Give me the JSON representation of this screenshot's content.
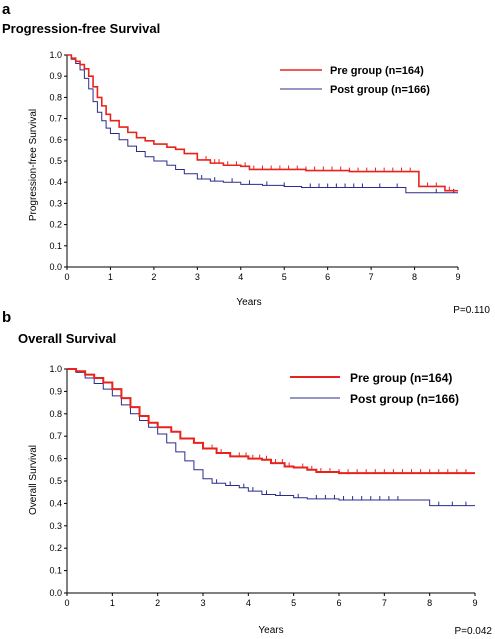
{
  "colors": {
    "pre": "#e8231c",
    "post": "#2b2b8c",
    "axis": "#000000"
  },
  "chart_data": [
    {
      "type": "line",
      "panel_label": "a",
      "title": "Progression-free  Survival",
      "xlabel": "Years",
      "ylabel": "Progression-free  Survival",
      "xlim": [
        0,
        9
      ],
      "ylim": [
        0,
        1.0
      ],
      "xticks": [
        "0",
        "1",
        "2",
        "3",
        "4",
        "5",
        "6",
        "7",
        "8",
        "9"
      ],
      "yticks": [
        "0.0",
        "0.1",
        "0.2",
        "0.3",
        "0.4",
        "0.5",
        "0.6",
        "0.7",
        "0.8",
        "0.9",
        "1.0"
      ],
      "legend_position": "top-right",
      "p_value": "P=0.110",
      "series": [
        {
          "name": "Pre group (n=164)",
          "color": "#e8231c",
          "points": [
            [
              0,
              1.0
            ],
            [
              0.1,
              0.985
            ],
            [
              0.2,
              0.97
            ],
            [
              0.3,
              0.955
            ],
            [
              0.4,
              0.935
            ],
            [
              0.5,
              0.9
            ],
            [
              0.6,
              0.85
            ],
            [
              0.7,
              0.8
            ],
            [
              0.8,
              0.76
            ],
            [
              0.9,
              0.72
            ],
            [
              1.0,
              0.69
            ],
            [
              1.2,
              0.66
            ],
            [
              1.4,
              0.635
            ],
            [
              1.6,
              0.61
            ],
            [
              1.8,
              0.595
            ],
            [
              2.0,
              0.58
            ],
            [
              2.3,
              0.565
            ],
            [
              2.5,
              0.555
            ],
            [
              2.7,
              0.535
            ],
            [
              3.0,
              0.505
            ],
            [
              3.3,
              0.49
            ],
            [
              3.6,
              0.48
            ],
            [
              4.0,
              0.475
            ],
            [
              4.2,
              0.46
            ],
            [
              5.0,
              0.46
            ],
            [
              5.5,
              0.455
            ],
            [
              6.5,
              0.45
            ],
            [
              8.1,
              0.45
            ],
            [
              8.1,
              0.38
            ],
            [
              8.7,
              0.38
            ],
            [
              8.7,
              0.36
            ],
            [
              9.0,
              0.36
            ]
          ],
          "censors": [
            3.0,
            3.2,
            3.4,
            3.5,
            3.7,
            3.9,
            4.1,
            4.3,
            4.5,
            4.7,
            4.9,
            5.1,
            5.3,
            5.5,
            5.7,
            5.9,
            6.1,
            6.3,
            6.5,
            6.7,
            6.9,
            7.1,
            7.3,
            7.5,
            7.7,
            7.9,
            8.3,
            8.5,
            8.8
          ]
        },
        {
          "name": "Post group (n=166)",
          "color": "#2b2b8c",
          "points": [
            [
              0,
              1.0
            ],
            [
              0.1,
              0.98
            ],
            [
              0.2,
              0.96
            ],
            [
              0.3,
              0.93
            ],
            [
              0.4,
              0.89
            ],
            [
              0.5,
              0.84
            ],
            [
              0.6,
              0.78
            ],
            [
              0.7,
              0.73
            ],
            [
              0.8,
              0.69
            ],
            [
              0.9,
              0.655
            ],
            [
              1.0,
              0.63
            ],
            [
              1.2,
              0.6
            ],
            [
              1.4,
              0.57
            ],
            [
              1.6,
              0.545
            ],
            [
              1.8,
              0.52
            ],
            [
              2.0,
              0.5
            ],
            [
              2.3,
              0.48
            ],
            [
              2.5,
              0.46
            ],
            [
              2.7,
              0.44
            ],
            [
              3.0,
              0.415
            ],
            [
              3.3,
              0.405
            ],
            [
              3.6,
              0.4
            ],
            [
              4.0,
              0.39
            ],
            [
              4.5,
              0.385
            ],
            [
              5.0,
              0.38
            ],
            [
              5.4,
              0.375
            ],
            [
              7.8,
              0.375
            ],
            [
              7.8,
              0.35
            ],
            [
              9.0,
              0.35
            ]
          ],
          "censors": [
            3.1,
            3.4,
            3.8,
            4.2,
            4.6,
            5.0,
            5.6,
            5.8,
            6.0,
            6.2,
            6.4,
            6.6,
            6.8,
            7.2,
            7.6,
            8.5,
            8.9
          ]
        }
      ]
    },
    {
      "type": "line",
      "panel_label": "b",
      "title": "Overall  Survival",
      "xlabel": "Years",
      "ylabel": "Overall Survival",
      "xlim": [
        0,
        9
      ],
      "ylim": [
        0,
        1.0
      ],
      "xticks": [
        "0",
        "1",
        "2",
        "3",
        "4",
        "5",
        "6",
        "7",
        "8",
        "9"
      ],
      "yticks": [
        "0.0",
        "0.1",
        "0.2",
        "0.3",
        "0.4",
        "0.5",
        "0.6",
        "0.7",
        "0.8",
        "0.9",
        "1.0"
      ],
      "legend_position": "top-right",
      "p_value": "P=0.042",
      "series": [
        {
          "name": "Pre group (n=164)",
          "color": "#e8231c",
          "points": [
            [
              0,
              1.0
            ],
            [
              0.2,
              0.99
            ],
            [
              0.4,
              0.975
            ],
            [
              0.6,
              0.96
            ],
            [
              0.8,
              0.94
            ],
            [
              1.0,
              0.91
            ],
            [
              1.2,
              0.87
            ],
            [
              1.4,
              0.83
            ],
            [
              1.6,
              0.79
            ],
            [
              1.8,
              0.76
            ],
            [
              2.0,
              0.74
            ],
            [
              2.3,
              0.72
            ],
            [
              2.5,
              0.69
            ],
            [
              2.8,
              0.67
            ],
            [
              3.0,
              0.645
            ],
            [
              3.3,
              0.625
            ],
            [
              3.6,
              0.61
            ],
            [
              4.0,
              0.6
            ],
            [
              4.3,
              0.595
            ],
            [
              4.5,
              0.58
            ],
            [
              4.8,
              0.565
            ],
            [
              5.0,
              0.56
            ],
            [
              5.3,
              0.55
            ],
            [
              5.5,
              0.54
            ],
            [
              6.0,
              0.535
            ],
            [
              9.0,
              0.535
            ]
          ],
          "censors": [
            3.0,
            3.2,
            3.4,
            3.6,
            3.8,
            3.95,
            4.1,
            4.25,
            4.4,
            4.6,
            4.75,
            4.9,
            5.2,
            5.4,
            5.6,
            5.8,
            6.0,
            6.2,
            6.4,
            6.6,
            6.8,
            7.0,
            7.2,
            7.4,
            7.6,
            7.8,
            8.0,
            8.2,
            8.4,
            8.6,
            8.8
          ]
        },
        {
          "name": "Post group (n=166)",
          "color": "#2b2b8c",
          "points": [
            [
              0,
              1.0
            ],
            [
              0.2,
              0.985
            ],
            [
              0.4,
              0.96
            ],
            [
              0.6,
              0.935
            ],
            [
              0.8,
              0.91
            ],
            [
              1.0,
              0.88
            ],
            [
              1.2,
              0.84
            ],
            [
              1.4,
              0.8
            ],
            [
              1.6,
              0.77
            ],
            [
              1.8,
              0.74
            ],
            [
              2.0,
              0.71
            ],
            [
              2.2,
              0.67
            ],
            [
              2.4,
              0.63
            ],
            [
              2.6,
              0.59
            ],
            [
              2.8,
              0.55
            ],
            [
              3.0,
              0.51
            ],
            [
              3.2,
              0.49
            ],
            [
              3.5,
              0.48
            ],
            [
              3.8,
              0.47
            ],
            [
              4.0,
              0.455
            ],
            [
              4.3,
              0.44
            ],
            [
              4.6,
              0.435
            ],
            [
              5.0,
              0.425
            ],
            [
              5.3,
              0.42
            ],
            [
              6.0,
              0.415
            ],
            [
              7.5,
              0.415
            ],
            [
              8.0,
              0.39
            ],
            [
              9.0,
              0.39
            ]
          ],
          "censors": [
            3.3,
            3.6,
            3.9,
            4.1,
            4.4,
            4.7,
            5.1,
            5.5,
            5.7,
            5.9,
            6.1,
            6.3,
            6.5,
            6.7,
            6.9,
            7.1,
            7.3,
            8.2,
            8.5,
            8.8
          ]
        }
      ]
    }
  ]
}
